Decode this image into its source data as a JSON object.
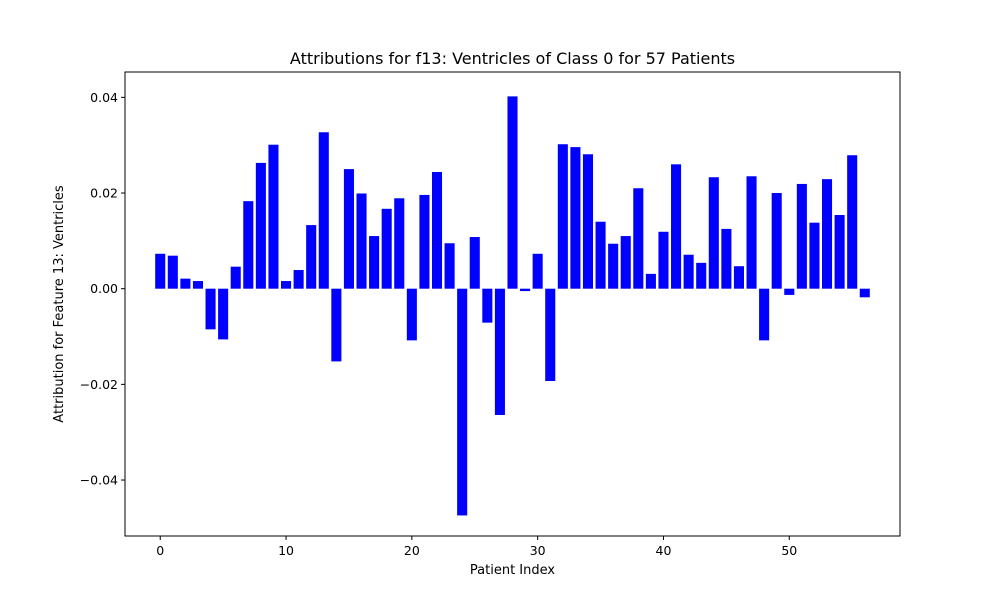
{
  "chart_data": {
    "type": "bar",
    "title": "Attributions for f13: Ventricles of Class 0 for 57 Patients",
    "xlabel": "Patient Index",
    "ylabel": "Attribution for Feature 13: Ventricles",
    "bar_color": "#0000ff",
    "xlim": [
      -2.8,
      58.8
    ],
    "ylim": [
      -0.0517,
      0.0453
    ],
    "xticks": [
      0,
      10,
      20,
      30,
      40,
      50
    ],
    "xtick_labels": [
      "0",
      "10",
      "20",
      "30",
      "40",
      "50"
    ],
    "yticks": [
      -0.04,
      -0.02,
      0.0,
      0.02,
      0.04
    ],
    "ytick_labels": [
      "−0.04",
      "−0.02",
      "0.00",
      "0.02",
      "0.04"
    ],
    "grid": false,
    "x": [
      0,
      1,
      2,
      3,
      4,
      5,
      6,
      7,
      8,
      9,
      10,
      11,
      12,
      13,
      14,
      15,
      16,
      17,
      18,
      19,
      20,
      21,
      22,
      23,
      24,
      25,
      26,
      27,
      28,
      29,
      30,
      31,
      32,
      33,
      34,
      35,
      36,
      37,
      38,
      39,
      40,
      41,
      42,
      43,
      44,
      45,
      46,
      47,
      48,
      49,
      50,
      51,
      52,
      53,
      54,
      55,
      56
    ],
    "values": [
      0.0073,
      0.0069,
      0.0021,
      0.0016,
      -0.0085,
      -0.0106,
      0.0046,
      0.0183,
      0.0263,
      0.0301,
      0.0016,
      0.0039,
      0.0133,
      0.0327,
      -0.0152,
      0.025,
      0.0199,
      0.011,
      0.0167,
      0.0189,
      -0.0108,
      0.0196,
      0.0244,
      0.0095,
      -0.0474,
      0.0108,
      -0.0071,
      -0.0264,
      0.0402,
      -0.0005,
      0.0073,
      -0.0193,
      0.0302,
      0.0296,
      0.0281,
      0.014,
      0.0094,
      0.011,
      0.021,
      0.0031,
      0.0119,
      0.026,
      0.0071,
      0.0054,
      0.0233,
      0.0125,
      0.0047,
      0.0235,
      -0.0108,
      0.02,
      -0.0013,
      0.0219,
      0.0138,
      0.0229,
      0.0154,
      0.0279,
      -0.0018
    ]
  }
}
